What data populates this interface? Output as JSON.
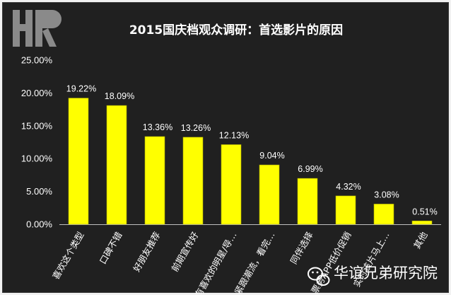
{
  "chart_data": {
    "type": "bar",
    "title": "2015国庆档观众调研：首选影片的原因",
    "categories": [
      "喜欢这个类型",
      "口碑不错",
      "好朋友推荐",
      "前期宣传好",
      "有喜欢的明星/导…",
      "紧跟潮流，看完…",
      "同伴选择",
      "票务APP低价促销",
      "实时该片马上…",
      "其他"
    ],
    "values": [
      19.22,
      18.09,
      13.36,
      13.26,
      12.13,
      9.04,
      6.99,
      4.32,
      3.08,
      0.51
    ],
    "data_labels": [
      "19.22%",
      "18.09%",
      "13.36%",
      "13.26%",
      "12.13%",
      "9.04%",
      "6.99%",
      "4.32%",
      "3.08%",
      "0.51%"
    ],
    "yticks": [
      0,
      5,
      10,
      15,
      20,
      25
    ],
    "ytick_labels": [
      "0.00%",
      "5.00%",
      "10.00%",
      "15.00%",
      "20.00%",
      "25.00%"
    ],
    "ylim": [
      0,
      25
    ],
    "xlabel": "",
    "ylabel": "",
    "grid": false,
    "legend": "none",
    "bar_color": "#ffff00",
    "background": "#202020"
  },
  "branding": {
    "logo_text": "HR",
    "watermark_text": "华谊兄弟研究院",
    "watermark_icon": "wechat-icon"
  },
  "colors": {
    "background": "#202020",
    "bar": "#ffff00",
    "text": "#ffffff"
  }
}
